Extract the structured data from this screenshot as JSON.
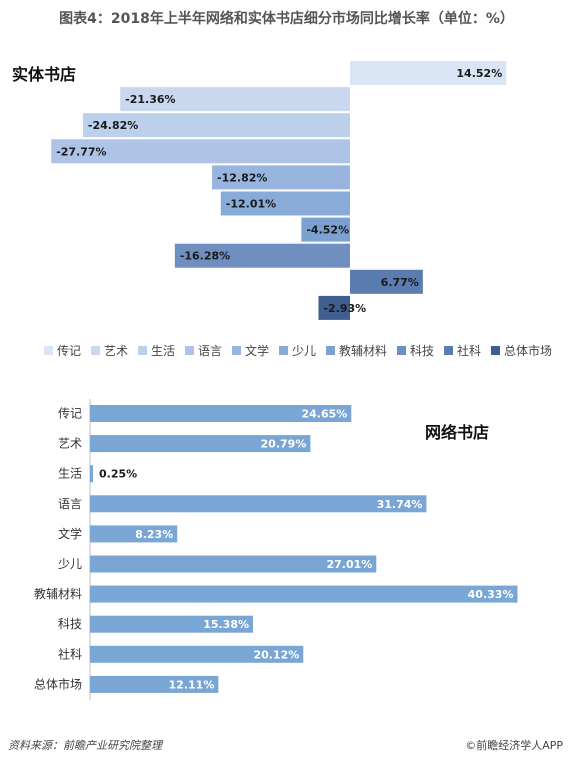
{
  "title": "图表4：2018年上半年网络和实体书店细分市场同比增长率（单位：%）",
  "source": "资料来源：前瞻产业研究院整理",
  "brand": "©前瞻经济学人APP",
  "chart_data": [
    {
      "type": "bar",
      "orientation": "horizontal",
      "label": "实体书店",
      "categories": [
        "传记",
        "艺术",
        "生活",
        "语言",
        "文学",
        "少儿",
        "教辅材料",
        "科技",
        "社科",
        "总体市场"
      ],
      "values": [
        14.52,
        -21.36,
        -24.82,
        -27.77,
        -12.82,
        -12.01,
        -4.52,
        -16.28,
        6.77,
        -2.93
      ],
      "value_labels": [
        "14.52%",
        "-21.36%",
        "-24.82%",
        "-27.77%",
        "-12.82%",
        "-12.01%",
        "-4.52%",
        "-16.28%",
        "6.77%",
        "-2.93%"
      ],
      "colors": [
        "#d9e4f4",
        "#c9d8ef",
        "#bccfeb",
        "#adc4e6",
        "#97b5de",
        "#88abd8",
        "#7aa1d1",
        "#6e8fbf",
        "#5b7cb0",
        "#3e5f8f"
      ],
      "legend": [
        "传记",
        "艺术",
        "生活",
        "语言",
        "文学",
        "少儿",
        "教辅材料",
        "科技",
        "社科",
        "总体市场"
      ],
      "legend_position": "bottom"
    },
    {
      "type": "bar",
      "orientation": "horizontal",
      "label": "网络书店",
      "categories": [
        "传记",
        "艺术",
        "生活",
        "语言",
        "文学",
        "少儿",
        "教辅材料",
        "科技",
        "社科",
        "总体市场"
      ],
      "values": [
        24.65,
        20.79,
        0.25,
        31.74,
        8.23,
        27.01,
        40.33,
        15.38,
        20.12,
        12.11
      ],
      "value_labels": [
        "24.65%",
        "20.79%",
        "0.25%",
        "31.74%",
        "8.23%",
        "27.01%",
        "40.33%",
        "15.38%",
        "20.12%",
        "12.11%"
      ],
      "color": "#7aa6d6"
    }
  ]
}
